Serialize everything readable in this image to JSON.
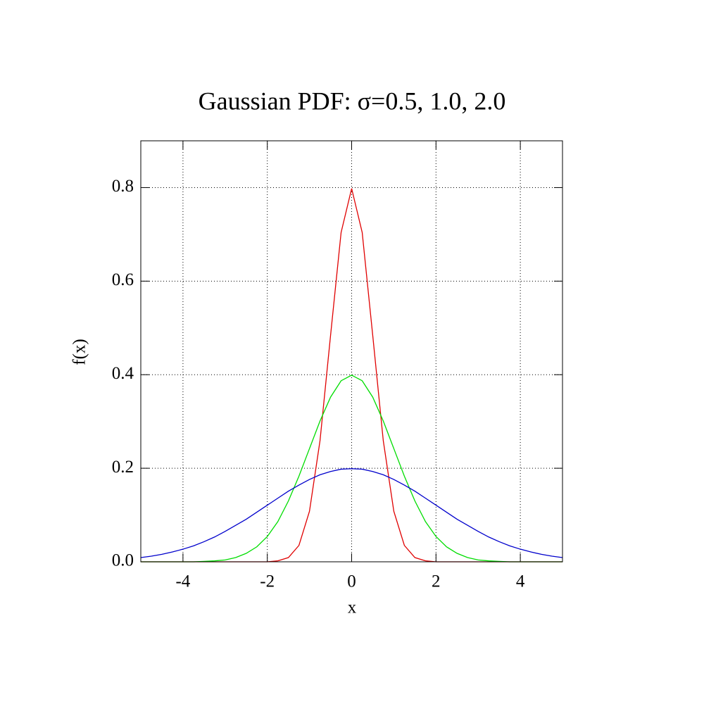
{
  "chart_data": {
    "type": "line",
    "title": "Gaussian PDF: σ=0.5, 1.0, 2.0",
    "x_label": "x",
    "y_label": "f(x)",
    "x": [
      -5,
      -4.75,
      -4.5,
      -4.25,
      -4,
      -3.75,
      -3.5,
      -3.25,
      -3,
      -2.75,
      -2.5,
      -2.25,
      -2,
      -1.75,
      -1.5,
      -1.25,
      -1,
      -0.75,
      -0.5,
      -0.25,
      0,
      0.25,
      0.5,
      0.75,
      1,
      1.25,
      1.5,
      1.75,
      2,
      2.25,
      2.5,
      2.75,
      3,
      3.25,
      3.5,
      3.75,
      4,
      4.25,
      4.5,
      4.75,
      5
    ],
    "series": [
      {
        "color": "#e00000",
        "values": [
          0,
          0,
          0,
          0,
          0,
          0,
          0,
          0,
          0,
          0,
          0,
          0,
          0,
          0.002,
          0.009,
          0.035,
          0.108,
          0.259,
          0.484,
          0.704,
          0.798,
          0.704,
          0.484,
          0.259,
          0.108,
          0.035,
          0.009,
          0.002,
          0,
          0,
          0,
          0,
          0,
          0,
          0,
          0,
          0,
          0,
          0,
          0,
          0
        ]
      },
      {
        "color": "#00dd00",
        "values": [
          0,
          0,
          0,
          0,
          0,
          0,
          0.001,
          0.002,
          0.004,
          0.009,
          0.018,
          0.032,
          0.054,
          0.086,
          0.13,
          0.183,
          0.242,
          0.301,
          0.352,
          0.387,
          0.399,
          0.387,
          0.352,
          0.301,
          0.242,
          0.183,
          0.13,
          0.086,
          0.054,
          0.032,
          0.018,
          0.009,
          0.004,
          0.002,
          0.001,
          0,
          0,
          0,
          0,
          0,
          0
        ]
      },
      {
        "color": "#0000cc",
        "values": [
          0.009,
          0.012,
          0.016,
          0.021,
          0.027,
          0.034,
          0.043,
          0.053,
          0.065,
          0.078,
          0.091,
          0.106,
          0.121,
          0.136,
          0.151,
          0.164,
          0.176,
          0.186,
          0.193,
          0.198,
          0.199,
          0.198,
          0.193,
          0.186,
          0.176,
          0.164,
          0.151,
          0.136,
          0.121,
          0.106,
          0.091,
          0.078,
          0.065,
          0.053,
          0.043,
          0.034,
          0.027,
          0.021,
          0.016,
          0.012,
          0.009
        ]
      }
    ],
    "xlim": [
      -5,
      5
    ],
    "ylim": [
      0,
      0.9
    ],
    "xticks": [
      -4,
      -2,
      0,
      2,
      4
    ],
    "yticks": [
      {
        "value": 0,
        "label": "0.0"
      },
      0.2,
      0.4,
      0.6,
      0.8
    ],
    "grid": true
  }
}
